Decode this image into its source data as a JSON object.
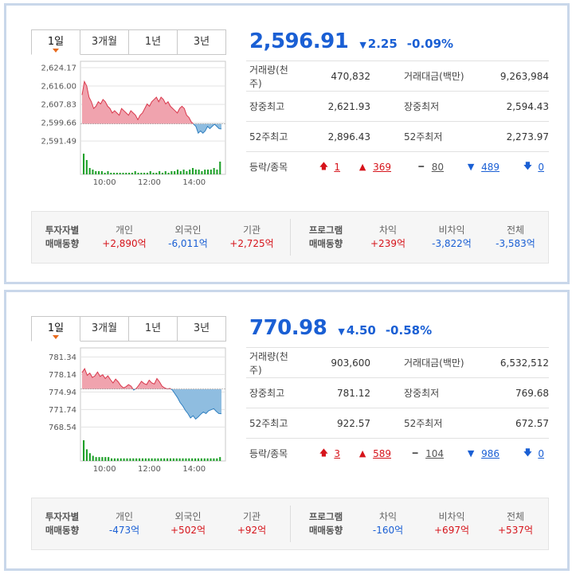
{
  "panels": [
    {
      "tabs": [
        "1일",
        "3개월",
        "1년",
        "3년"
      ],
      "price": "2,596.91",
      "change": "2.25",
      "change_arrow": "▼",
      "percent": "-0.09%",
      "stats": {
        "volume_label": "거래량(천주)",
        "volume": "470,832",
        "amount_label": "거래대금(백만)",
        "amount": "9,263,984",
        "high_label": "장중최고",
        "high": "2,621.93",
        "low_label": "장중최저",
        "low": "2,594.43",
        "w52high_label": "52주최고",
        "w52high": "2,896.43",
        "w52low_label": "52주최저",
        "w52low": "2,273.97",
        "adv_label": "등락/종목",
        "upper": "1",
        "up": "369",
        "flat": "80",
        "down": "489",
        "lower": "0"
      },
      "flow": {
        "investor_head1": "투자자별",
        "investor_head2": "매매동향",
        "individual_label": "개인",
        "individual": "+2,890억",
        "foreign_label": "외국인",
        "foreign": "-6,011억",
        "institution_label": "기관",
        "institution": "+2,725억",
        "program_head1": "프로그램",
        "program_head2": "매매동향",
        "arb_label": "차익",
        "arb": "+239억",
        "nonarb_label": "비차익",
        "nonarb": "-3,822억",
        "total_label": "전체",
        "total": "-3,583억"
      },
      "chart_data": {
        "type": "area",
        "yticks": [
          "2,624.17",
          "2,616.00",
          "2,607.83",
          "2,599.66",
          "2,591.49"
        ],
        "ytick_values": [
          2624.17,
          2616.0,
          2607.83,
          2599.66,
          2591.49
        ],
        "xticks": [
          "10:00",
          "12:00",
          "14:00"
        ],
        "ylim": [
          2588,
          2627
        ],
        "baseline": 2599.16,
        "x_time_range": [
          "09:00",
          "15:30"
        ],
        "series": [
          {
            "values": [
              2612,
              2618,
              2616,
              2611,
              2609,
              2606,
              2607,
              2609,
              2608,
              2610,
              2609,
              2607,
              2606,
              2604,
              2605,
              2604,
              2603,
              2606,
              2605,
              2604,
              2603,
              2605,
              2604,
              2603,
              2601,
              2603,
              2604,
              2606,
              2608,
              2607,
              2609,
              2610,
              2611,
              2609,
              2611,
              2610,
              2608,
              2609,
              2607,
              2606,
              2605,
              2604,
              2606,
              2607,
              2606,
              2603,
              2602,
              2600,
              2599,
              2598,
              2595,
              2596,
              2595,
              2596,
              2598,
              2597,
              2598,
              2599,
              2598,
              2597,
              2596.91
            ]
          }
        ],
        "volume_bars": [
          13,
          9,
          4,
          3,
          2,
          2,
          2,
          1,
          2,
          1,
          1,
          1,
          1,
          1,
          1,
          1,
          1,
          2,
          1,
          1,
          1,
          1,
          2,
          1,
          1,
          2,
          1,
          2,
          1,
          2,
          2,
          3,
          2,
          3,
          2,
          3,
          4,
          3,
          3,
          2,
          3,
          3,
          3,
          4,
          3,
          8
        ]
      }
    },
    {
      "tabs": [
        "1일",
        "3개월",
        "1년",
        "3년"
      ],
      "price": "770.98",
      "change": "4.50",
      "change_arrow": "▼",
      "percent": "-0.58%",
      "stats": {
        "volume_label": "거래량(천주)",
        "volume": "903,600",
        "amount_label": "거래대금(백만)",
        "amount": "6,532,512",
        "high_label": "장중최고",
        "high": "781.12",
        "low_label": "장중최저",
        "low": "769.68",
        "w52high_label": "52주최고",
        "w52high": "922.57",
        "w52low_label": "52주최저",
        "w52low": "672.57",
        "adv_label": "등락/종목",
        "upper": "3",
        "up": "589",
        "flat": "104",
        "down": "986",
        "lower": "0"
      },
      "flow": {
        "investor_head1": "투자자별",
        "investor_head2": "매매동향",
        "individual_label": "개인",
        "individual": "-473억",
        "foreign_label": "외국인",
        "foreign": "+502억",
        "institution_label": "기관",
        "institution": "+92억",
        "program_head1": "프로그램",
        "program_head2": "매매동향",
        "arb_label": "차익",
        "arb": "-160억",
        "nonarb_label": "비차익",
        "nonarb": "+697억",
        "total_label": "전체",
        "total": "+537억"
      },
      "chart_data": {
        "type": "area",
        "yticks": [
          "781.34",
          "778.14",
          "774.94",
          "771.74",
          "768.54"
        ],
        "ytick_values": [
          781.34,
          778.14,
          774.94,
          771.74,
          768.54
        ],
        "xticks": [
          "10:00",
          "12:00",
          "14:00"
        ],
        "ylim": [
          767,
          783
        ],
        "baseline": 775.48,
        "x_time_range": [
          "09:00",
          "15:30"
        ],
        "series": [
          {
            "values": [
              778.5,
              779.2,
              778.0,
              778.4,
              777.6,
              777.9,
              778.6,
              777.8,
              778.1,
              777.4,
              777.9,
              777.2,
              776.6,
              777.3,
              776.8,
              776.1,
              775.7,
              775.9,
              776.3,
              776.0,
              775.3,
              775.6,
              776.2,
              776.9,
              776.5,
              776.3,
              777.1,
              776.6,
              776.4,
              777.4,
              776.8,
              776.0,
              775.7,
              775.5,
              775.6,
              775.3,
              774.6,
              773.9,
              773.0,
              772.4,
              771.6,
              771.0,
              770.2,
              770.6,
              770.0,
              770.4,
              770.9,
              771.3,
              771.0,
              771.5,
              771.7,
              771.9,
              771.4,
              771.0,
              770.98
            ]
          }
        ],
        "volume_bars": [
          16,
          9,
          6,
          4,
          3,
          3,
          3,
          3,
          3,
          2,
          2,
          2,
          2,
          2,
          2,
          2,
          2,
          2,
          2,
          2,
          2,
          2,
          2,
          2,
          2,
          2,
          2,
          2,
          2,
          2,
          2,
          2,
          2,
          2,
          2,
          2,
          2,
          2,
          2,
          2,
          2,
          2,
          2,
          2,
          3
        ]
      }
    }
  ],
  "colors": {
    "accent_blue": "#1a5fd4",
    "rise_red": "#d6141b",
    "area_up_fill": "#f0a3ae",
    "area_up_line": "#d9374b",
    "area_down_fill": "#8fbde0",
    "area_down_line": "#2f7fc0",
    "volume_green": "#1fa12a",
    "tab_marker": "#e86a1d"
  },
  "icons": {
    "upper": "arrow-up-thick-icon",
    "up": "triangle-up-icon",
    "flat": "dash-icon",
    "down": "triangle-down-icon",
    "lower": "arrow-down-thick-icon"
  }
}
